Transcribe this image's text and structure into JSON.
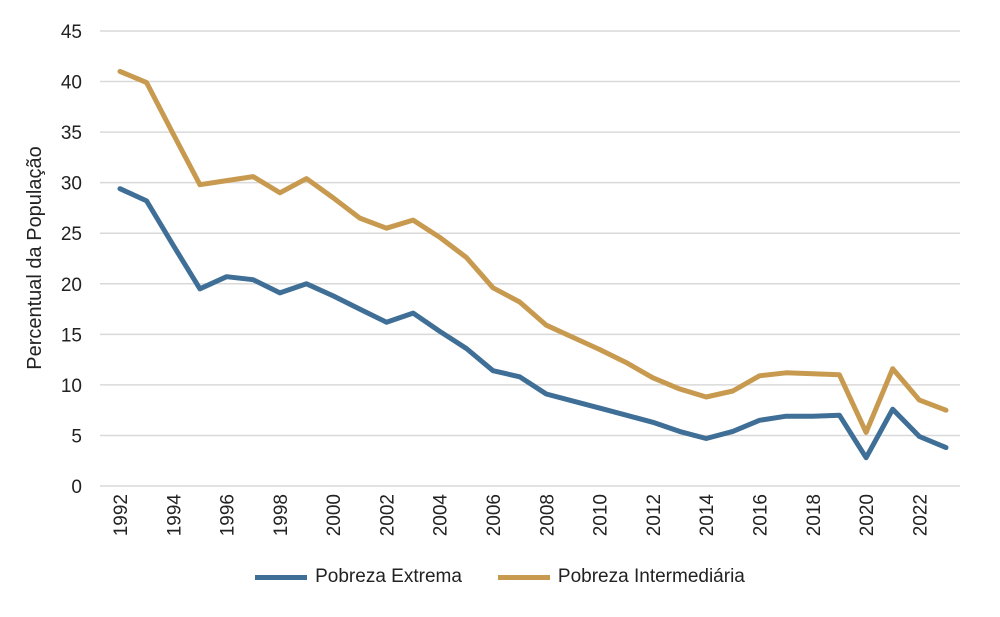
{
  "chart_data": {
    "type": "line",
    "title": "",
    "xlabel": "",
    "ylabel": "Percentual da População",
    "ylim": [
      0,
      45
    ],
    "yticks": [
      0,
      5,
      10,
      15,
      20,
      25,
      30,
      35,
      40,
      45
    ],
    "xticks": [
      "1992",
      "1994",
      "1996",
      "1998",
      "2000",
      "2002",
      "2004",
      "2006",
      "2008",
      "2010",
      "2012",
      "2014",
      "2016",
      "2018",
      "2020",
      "2022"
    ],
    "grid": true,
    "legend": "bottom",
    "x": [
      1992,
      1993,
      1994,
      1995,
      1996,
      1997,
      1998,
      1999,
      2000,
      2001,
      2002,
      2003,
      2004,
      2005,
      2006,
      2007,
      2008,
      2009,
      2010,
      2011,
      2012,
      2013,
      2014,
      2015,
      2016,
      2017,
      2018,
      2019,
      2020,
      2021,
      2022,
      2023
    ],
    "series": [
      {
        "name": "Pobreza Extrema",
        "color": "#3f6f96",
        "values": [
          29.4,
          28.2,
          23.8,
          19.5,
          20.7,
          20.4,
          19.1,
          20.0,
          18.8,
          17.5,
          16.2,
          17.1,
          15.3,
          13.6,
          11.4,
          10.8,
          9.1,
          8.4,
          7.7,
          7.0,
          6.3,
          5.4,
          4.7,
          5.4,
          6.5,
          6.9,
          6.9,
          7.0,
          2.8,
          7.6,
          4.9,
          3.8
        ]
      },
      {
        "name": "Pobreza Intermediária",
        "color": "#c89a4f",
        "values": [
          41.0,
          39.9,
          34.8,
          29.8,
          30.2,
          30.6,
          29.0,
          30.4,
          28.5,
          26.5,
          25.5,
          26.3,
          24.6,
          22.6,
          19.6,
          18.2,
          15.9,
          14.7,
          13.5,
          12.2,
          10.7,
          9.6,
          8.8,
          9.4,
          10.9,
          11.2,
          11.1,
          11.0,
          5.3,
          11.6,
          8.5,
          7.5
        ]
      }
    ]
  }
}
